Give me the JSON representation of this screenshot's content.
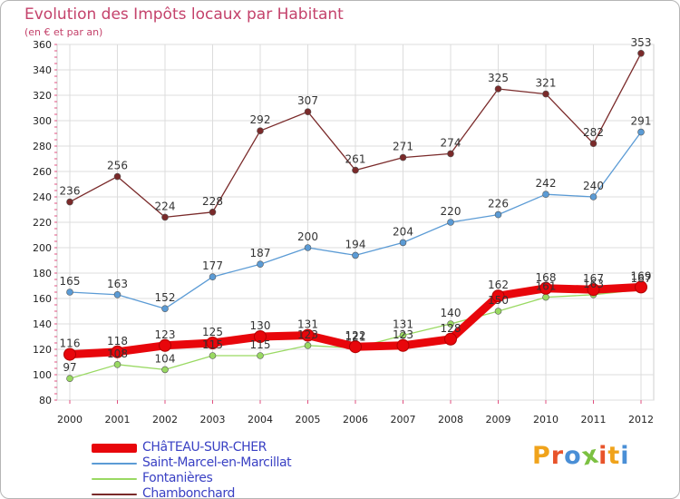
{
  "title": "Evolution des Impôts locaux par Habitant",
  "subtitle": "(en € et par an)",
  "brand": {
    "text": "Proxiti",
    "colors": [
      "#f0a31b",
      "#e8542b",
      "#4a8fd6",
      "#7cc142",
      "#e8542b",
      "#f0a31b",
      "#4a8fd6"
    ]
  },
  "chart_data": {
    "type": "line",
    "title": "Evolution des Impôts locaux par Habitant",
    "subtitle": "(en € et par an)",
    "x": [
      "2000",
      "2001",
      "2002",
      "2003",
      "2004",
      "2005",
      "2006",
      "2007",
      "2008",
      "2009",
      "2010",
      "2011",
      "2012"
    ],
    "ylim": [
      80,
      360
    ],
    "yticks": [
      80,
      100,
      120,
      140,
      160,
      180,
      200,
      220,
      240,
      260,
      280,
      300,
      320,
      340,
      360
    ],
    "grid": true,
    "legend_position": "bottom-left",
    "series": [
      {
        "name": "CHâTEAU-SUR-CHER",
        "color": "#e8060b",
        "values": [
          116,
          118,
          123,
          125,
          130,
          131,
          122,
          123,
          128,
          162,
          168,
          167,
          169
        ],
        "labels": [
          "116",
          "118",
          "123",
          "125",
          "130",
          "131",
          "122",
          "123",
          "128",
          "162",
          "168",
          "167",
          "169"
        ]
      },
      {
        "name": "Saint-Marcel-en-Marcillat",
        "color": "#5b9bd5",
        "values": [
          165,
          163,
          152,
          177,
          187,
          200,
          194,
          204,
          220,
          226,
          242,
          240,
          291
        ],
        "labels": [
          "165",
          "163",
          "152",
          "177",
          "187",
          "200",
          "194",
          "204",
          "220",
          "226",
          "242",
          "240",
          "291"
        ]
      },
      {
        "name": "Fontanières",
        "color": "#99d962",
        "values": [
          97,
          108,
          104,
          115,
          115,
          123,
          121,
          131,
          140,
          150,
          161,
          163,
          167
        ],
        "labels": [
          "97",
          "108",
          "104",
          "115",
          "115",
          "123",
          "121",
          "131",
          "140",
          "150",
          "161",
          "163",
          "167"
        ]
      },
      {
        "name": "Chambonchard",
        "color": "#7a2a2a",
        "values": [
          236,
          256,
          224,
          228,
          292,
          307,
          261,
          271,
          274,
          325,
          321,
          282,
          353
        ],
        "labels": [
          "236",
          "256",
          "224",
          "228",
          "292",
          "307",
          "261",
          "271",
          "274",
          "325",
          "321",
          "282",
          "353"
        ]
      }
    ]
  }
}
